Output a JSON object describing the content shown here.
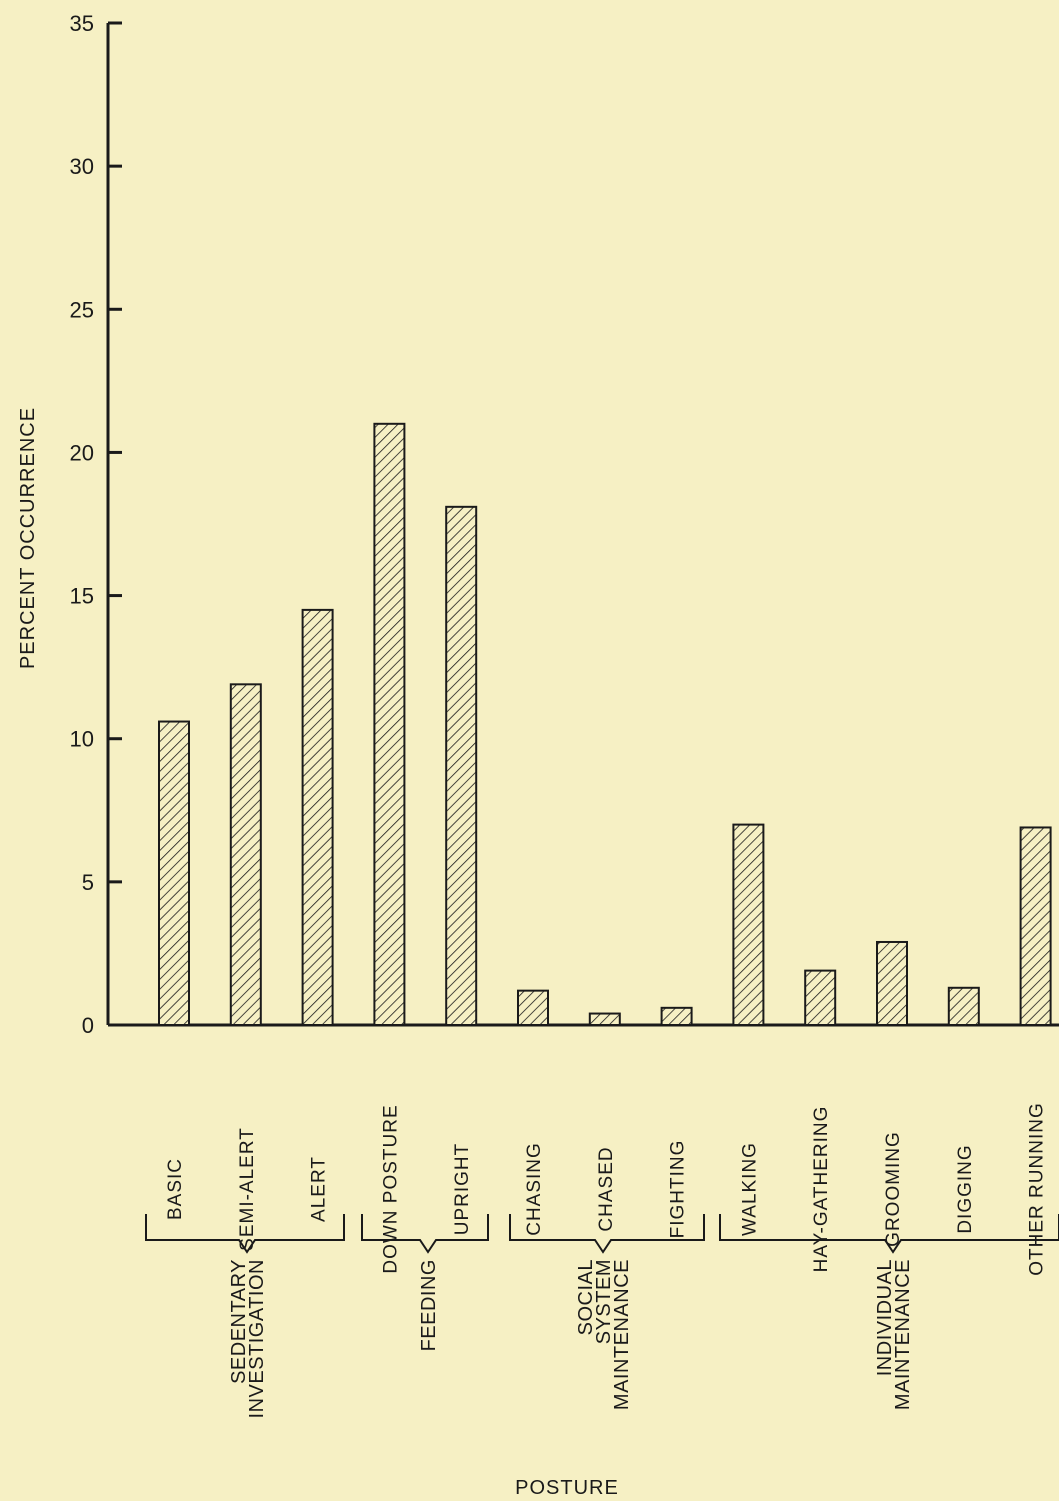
{
  "chart_data": {
    "type": "bar",
    "ylabel": "PERCENT OCCURRENCE",
    "xlabel": "POSTURE",
    "ylim": [
      0,
      35
    ],
    "yticks": [
      "0",
      "5",
      "10",
      "15",
      "20",
      "25",
      "30",
      "35"
    ],
    "categories": [
      "BASIC",
      "SEMI-ALERT",
      "ALERT",
      "DOWN POSTURE",
      "UPRIGHT",
      "CHASING",
      "CHASED",
      "FIGHTING",
      "WALKING",
      "HAY-GATHERING",
      "GROOMING",
      "DIGGING",
      "OTHER RUNNING"
    ],
    "values": [
      10.6,
      11.9,
      14.5,
      21.0,
      18.1,
      1.2,
      0.4,
      0.6,
      7.0,
      1.9,
      2.9,
      1.3,
      6.9
    ],
    "groups": [
      {
        "lines": [
          "SEDENTARY",
          "INVESTIGATION"
        ],
        "categories": [
          "BASIC",
          "SEMI-ALERT",
          "ALERT"
        ]
      },
      {
        "lines": [
          "FEEDING"
        ],
        "categories": [
          "DOWN POSTURE",
          "UPRIGHT"
        ]
      },
      {
        "lines": [
          "SOCIAL",
          "SYSTEM",
          "MAINTENANCE"
        ],
        "categories": [
          "CHASING",
          "CHASED",
          "FIGHTING"
        ]
      },
      {
        "lines": [
          "INDIVIDUAL",
          "MAINTENANCE"
        ],
        "categories": [
          "WALKING",
          "HAY-GATHERING",
          "GROOMING",
          "DIGGING",
          "OTHER RUNNING"
        ]
      }
    ],
    "grid": false,
    "legend": "none",
    "bar_fill": "diagonal hatch"
  },
  "colors": {
    "background": "#f6f0c4",
    "ink": "#1a1a1a"
  }
}
